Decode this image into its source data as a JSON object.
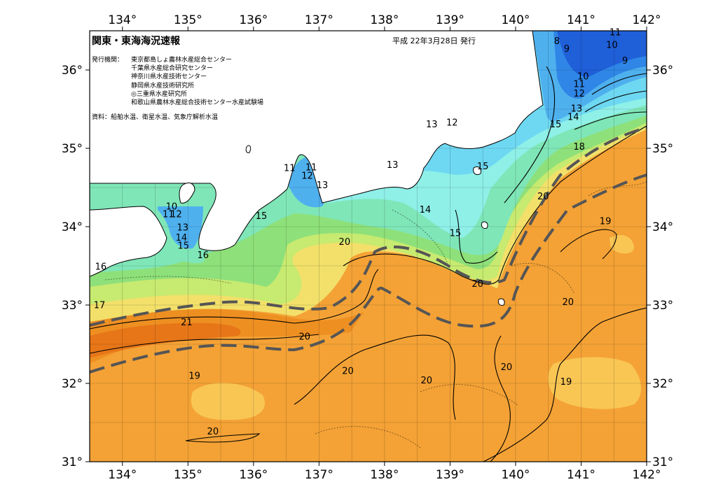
{
  "header": {
    "title": "関東・東海海況速報",
    "issue_date": "平成 22年3月28日 発行"
  },
  "agencies": {
    "label": "発行機関：",
    "list": [
      "東京都島しょ農林水産総合センター",
      "千葉県水産総合研究センター",
      "神奈川県水産技術センター",
      "静岡県水産技術研究所",
      "◎三重県水産研究所",
      "和歌山県農林水産総合技術センター水産試験場"
    ]
  },
  "source": "資料：船舶水温、衛星水温、気象庁解析水温",
  "axes": {
    "longitudes": [
      "134°",
      "135°",
      "136°",
      "137°",
      "138°",
      "139°",
      "140°",
      "141°",
      "142°"
    ],
    "latitudes": [
      "36°",
      "35°",
      "34°",
      "33°",
      "32°",
      "31°"
    ]
  },
  "contour_labels": [
    {
      "text": "8",
      "lon": 140.63,
      "lat": 36.33
    },
    {
      "text": "9",
      "lon": 140.78,
      "lat": 36.23
    },
    {
      "text": "11",
      "lon": 141.52,
      "lat": 36.44
    },
    {
      "text": "10",
      "lon": 141.47,
      "lat": 36.28
    },
    {
      "text": "9",
      "lon": 141.67,
      "lat": 36.08
    },
    {
      "text": "10",
      "lon": 141.03,
      "lat": 35.88
    },
    {
      "text": "11",
      "lon": 140.97,
      "lat": 35.78
    },
    {
      "text": "12",
      "lon": 140.97,
      "lat": 35.66
    },
    {
      "text": "13",
      "lon": 140.93,
      "lat": 35.47
    },
    {
      "text": "14",
      "lon": 140.88,
      "lat": 35.36
    },
    {
      "text": "15",
      "lon": 140.61,
      "lat": 35.27
    },
    {
      "text": "18",
      "lon": 140.97,
      "lat": 34.98
    },
    {
      "text": "13",
      "lon": 138.72,
      "lat": 35.27
    },
    {
      "text": "12",
      "lon": 139.03,
      "lat": 35.29
    },
    {
      "text": "15",
      "lon": 139.5,
      "lat": 34.73
    },
    {
      "text": "13",
      "lon": 138.12,
      "lat": 34.75
    },
    {
      "text": "14",
      "lon": 138.62,
      "lat": 34.18
    },
    {
      "text": "15",
      "lon": 139.08,
      "lat": 33.88
    },
    {
      "text": "20",
      "lon": 139.42,
      "lat": 33.23
    },
    {
      "text": "20",
      "lon": 140.42,
      "lat": 34.35
    },
    {
      "text": "19",
      "lon": 141.37,
      "lat": 34.03
    },
    {
      "text": "20",
      "lon": 140.8,
      "lat": 33.0
    },
    {
      "text": "20",
      "lon": 139.86,
      "lat": 32.17
    },
    {
      "text": "19",
      "lon": 140.77,
      "lat": 31.98
    },
    {
      "text": "20",
      "lon": 138.64,
      "lat": 32.0
    },
    {
      "text": "20",
      "lon": 137.44,
      "lat": 32.12
    },
    {
      "text": "20",
      "lon": 136.78,
      "lat": 32.56
    },
    {
      "text": "20",
      "lon": 137.39,
      "lat": 33.77
    },
    {
      "text": "21",
      "lon": 134.98,
      "lat": 32.74
    },
    {
      "text": "19",
      "lon": 135.1,
      "lat": 32.06
    },
    {
      "text": "20",
      "lon": 135.38,
      "lat": 31.35
    },
    {
      "text": "11",
      "lon": 136.55,
      "lat": 34.71
    },
    {
      "text": "12",
      "lon": 136.82,
      "lat": 34.61
    },
    {
      "text": "11",
      "lon": 136.88,
      "lat": 34.72
    },
    {
      "text": "13",
      "lon": 137.05,
      "lat": 34.49
    },
    {
      "text": "15",
      "lon": 136.12,
      "lat": 34.1
    },
    {
      "text": "10",
      "lon": 134.75,
      "lat": 34.22
    },
    {
      "text": "11",
      "lon": 134.7,
      "lat": 34.12
    },
    {
      "text": "12",
      "lon": 134.82,
      "lat": 34.12
    },
    {
      "text": "13",
      "lon": 134.92,
      "lat": 33.95
    },
    {
      "text": "14",
      "lon": 134.9,
      "lat": 33.82
    },
    {
      "text": "15",
      "lon": 134.93,
      "lat": 33.72
    },
    {
      "text": "16",
      "lon": 135.23,
      "lat": 33.6
    },
    {
      "text": "16",
      "lon": 133.67,
      "lat": 33.45
    },
    {
      "text": "17",
      "lon": 133.65,
      "lat": 32.96
    }
  ],
  "colors": {
    "t9": "#1f5fd8",
    "t11": "#2f86e6",
    "t12": "#4fb0ee",
    "t13": "#6ed8f2",
    "t14": "#8ff0e8",
    "t15": "#7fe6b8",
    "t16": "#8ee07a",
    "t17": "#c7ea70",
    "t18": "#f2e06a",
    "t19": "#f9c654",
    "t20": "#f4a236",
    "t21": "#ee8f22",
    "t22": "#e77618",
    "land": "#ffffff",
    "kuroshio_axis": "#555555"
  }
}
